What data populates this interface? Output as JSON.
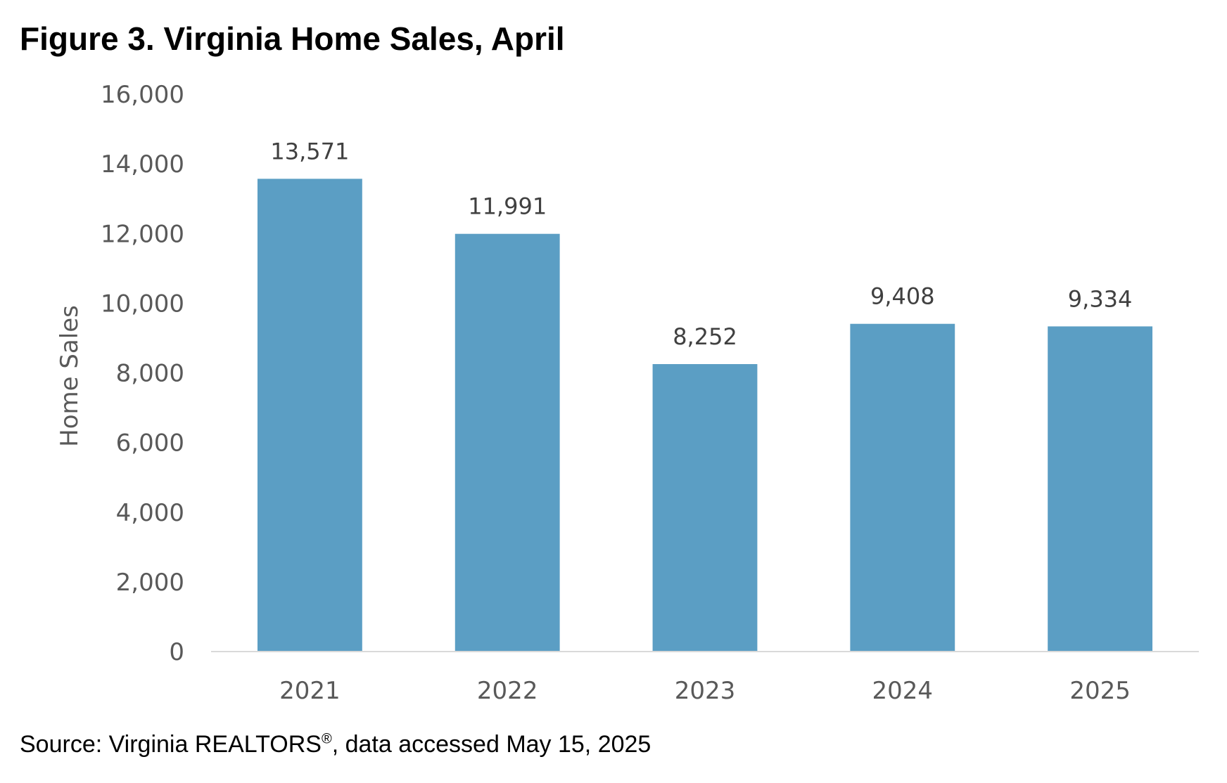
{
  "figure": {
    "title": "Figure 3. Virginia Home Sales, April",
    "source_prefix": "Source: Virginia REALTORS",
    "source_mark": "®",
    "source_suffix": ", data accessed May 15, 2025"
  },
  "colors": {
    "bar": "#5B9EC4",
    "axis_text": "#595959",
    "label_text": "#404040",
    "baseline": "#D9D9D9"
  },
  "chart_data": {
    "type": "bar",
    "title": "Figure 3. Virginia Home Sales, April",
    "xlabel": "",
    "ylabel": "Home Sales",
    "categories": [
      "2021",
      "2022",
      "2023",
      "2024",
      "2025"
    ],
    "values": [
      13571,
      11991,
      8252,
      9408,
      9334
    ],
    "value_labels": [
      "13,571",
      "11,991",
      "8,252",
      "9,408",
      "9,334"
    ],
    "ylim": [
      0,
      16000
    ],
    "yticks": [
      0,
      2000,
      4000,
      6000,
      8000,
      10000,
      12000,
      14000,
      16000
    ],
    "ytick_labels": [
      "0",
      "2,000",
      "4,000",
      "6,000",
      "8,000",
      "10,000",
      "12,000",
      "14,000",
      "16,000"
    ],
    "grid": false,
    "legend": "none"
  }
}
